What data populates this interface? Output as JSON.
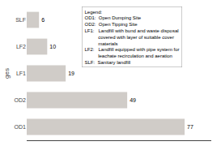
{
  "chart_data": {
    "type": "bar",
    "orientation": "horizontal",
    "categories": [
      "OD1",
      "OD2",
      "LF1",
      "LF2",
      "SLF"
    ],
    "values": [
      77,
      49,
      19,
      10,
      6
    ],
    "color": "#d0ccc8",
    "ylabel": "ges",
    "xlim": [
      0,
      90
    ],
    "grid": false,
    "data_labels": true,
    "tick_labels": "y",
    "annotations": [
      "Legend:\nOD1:  Open Dumping Site\nOD2:  Open Tipping Site\nLF1:   Landfill with bund and waste disposal\n          covered with layer of suitable cover\n          materials\nLF2:   Landfill equipped with pipe system for\n          leachate recirculation and aeration\nSLF:  Sanitary landfill"
    ]
  }
}
